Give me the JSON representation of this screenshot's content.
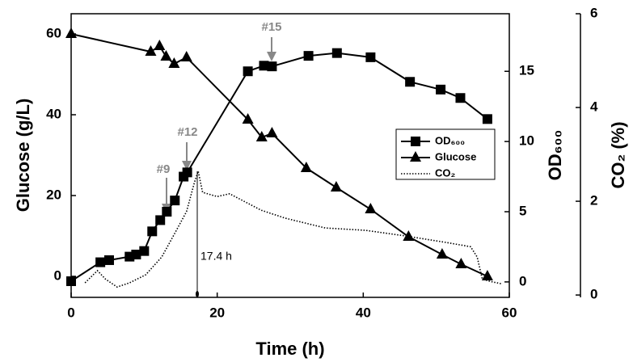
{
  "chart_data": {
    "type": "line",
    "x_label": "Time (h)",
    "y_label": "Glucose (g/L)",
    "y2_label": "OD₆₀₀",
    "y3_label": "CO₂ (%)",
    "xlim": [
      0,
      60
    ],
    "xticks": [
      0,
      20,
      40,
      60
    ],
    "ylim": [
      -5.2,
      65
    ],
    "yticks": [
      0,
      20,
      40,
      60
    ],
    "y2lim": [
      -1.1,
      19.1
    ],
    "y2ticks": [
      0,
      5,
      10,
      15
    ],
    "y3lim": [
      -0.05,
      6
    ],
    "y3ticks": [
      0,
      2,
      4,
      6
    ],
    "grid": false,
    "series": [
      {
        "name": "OD₆₀₀",
        "color": "#000000",
        "axis": "y2",
        "marker": "square",
        "dash": "none",
        "x": [
          0,
          4,
          5.2,
          8,
          8.9,
          10,
          11.1,
          12.2,
          13.1,
          14.2,
          15.4,
          15.9,
          24.2,
          26.4,
          27.5,
          32.5,
          36.4,
          41,
          46.4,
          50.6,
          53.3,
          57
        ],
        "values": [
          0.05,
          1.4,
          1.55,
          1.8,
          1.95,
          2.2,
          3.6,
          4.4,
          5.0,
          5.8,
          7.5,
          7.8,
          15.0,
          15.4,
          15.35,
          16.1,
          16.3,
          16.0,
          14.25,
          13.7,
          13.1,
          11.6
        ]
      },
      {
        "name": "Glucose",
        "color": "#000000",
        "axis": "y",
        "marker": "triangle",
        "dash": "none",
        "x": [
          0,
          10.9,
          12.1,
          13,
          14.1,
          15.8,
          24.2,
          26.1,
          27.5,
          32.2,
          36.3,
          41,
          46.2,
          50.8,
          53.4,
          57
        ],
        "values": [
          60,
          55.6,
          57,
          54.4,
          52.6,
          54.2,
          38.8,
          34.4,
          35.4,
          26.8,
          22,
          16.6,
          9.8,
          5.4,
          3,
          0
        ]
      },
      {
        "name": "CO₂",
        "color": "#000000",
        "axis": "y3",
        "marker": "none",
        "dash": "dotted",
        "x": [
          1.9,
          3.6,
          4.7,
          6.3,
          8,
          10.2,
          12.4,
          14.1,
          15.8,
          16.9,
          17.4,
          18,
          20,
          21.7,
          26,
          29.3,
          34.8,
          40.3,
          45.8,
          51.4,
          54.7,
          55.6,
          56.3,
          57.4,
          58.9
        ],
        "values": [
          0.26,
          0.52,
          0.34,
          0.17,
          0.26,
          0.43,
          0.81,
          1.29,
          1.78,
          2.41,
          2.64,
          2.19,
          2.1,
          2.16,
          1.81,
          1.64,
          1.43,
          1.38,
          1.26,
          1.12,
          1.03,
          0.81,
          0.34,
          0.29,
          0.24
        ]
      }
    ],
    "annotations": [
      "#9",
      "#12",
      "#15",
      "17.4 h"
    ]
  }
}
